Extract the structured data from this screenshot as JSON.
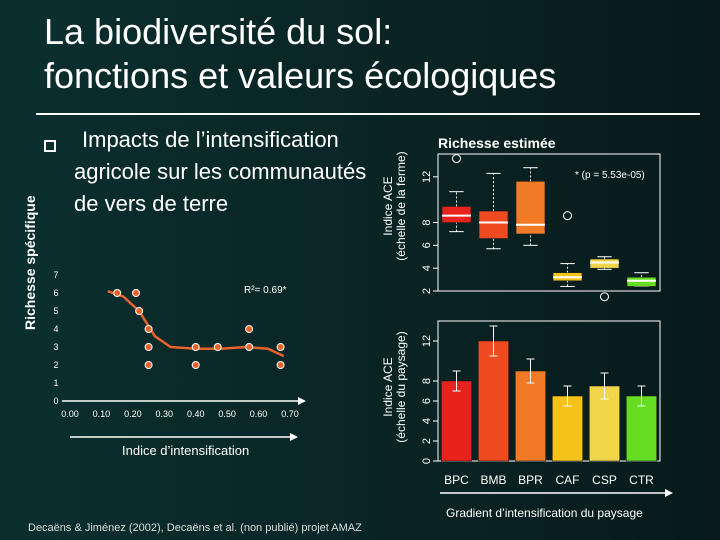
{
  "slide": {
    "title_line1": "La biodiversité du sol:",
    "title_line2": "fonctions et valeurs écologiques",
    "bullet_line1": "Impacts de l’intensification",
    "bullet_line2": "agricole sur les communautés",
    "bullet_line3": "de vers de terre",
    "footer": "Decaëns & Jiménez (2002), Decaëns et al. (non publié) projet AMAZ",
    "colors": {
      "background": "#0b2f2f",
      "accent_line": "#e8632a",
      "point": "#e8632a"
    }
  },
  "chart_data": [
    {
      "type": "scatter",
      "title": "",
      "xlabel": "Indice d’intensification",
      "ylabel": "Richesse spécifique",
      "annotation": "R²= 0.69*",
      "xlim": [
        0,
        0.7
      ],
      "ylim": [
        0,
        7
      ],
      "x_ticks": [
        "0.00",
        "0.10",
        "0.20",
        "0.30",
        "0.40",
        "0.50",
        "0.60",
        "0.70"
      ],
      "y_ticks": [
        "0",
        "1",
        "2",
        "3",
        "4",
        "5",
        "6",
        "7"
      ],
      "points": [
        {
          "x": 0.15,
          "y": 6.0
        },
        {
          "x": 0.21,
          "y": 6.0
        },
        {
          "x": 0.22,
          "y": 5.0
        },
        {
          "x": 0.25,
          "y": 4.0
        },
        {
          "x": 0.25,
          "y": 3.0
        },
        {
          "x": 0.25,
          "y": 2.0
        },
        {
          "x": 0.4,
          "y": 3.0
        },
        {
          "x": 0.4,
          "y": 2.0
        },
        {
          "x": 0.47,
          "y": 3.0
        },
        {
          "x": 0.57,
          "y": 4.0
        },
        {
          "x": 0.57,
          "y": 3.0
        },
        {
          "x": 0.67,
          "y": 3.0
        },
        {
          "x": 0.67,
          "y": 2.0
        }
      ],
      "trend": [
        {
          "x": 0.12,
          "y": 6.1
        },
        {
          "x": 0.17,
          "y": 5.8
        },
        {
          "x": 0.22,
          "y": 5.0
        },
        {
          "x": 0.27,
          "y": 3.6
        },
        {
          "x": 0.32,
          "y": 3.0
        },
        {
          "x": 0.4,
          "y": 2.9
        },
        {
          "x": 0.48,
          "y": 2.9
        },
        {
          "x": 0.56,
          "y": 3.0
        },
        {
          "x": 0.63,
          "y": 2.9
        },
        {
          "x": 0.68,
          "y": 2.5
        }
      ]
    },
    {
      "type": "box",
      "title": "Richesse estimée",
      "ylabel_line1": "Indice ACE",
      "ylabel_line2": "(échelle de la ferme)",
      "annotation": "* (p = 5.53e-05)",
      "ylim": [
        2,
        14
      ],
      "y_ticks": [
        "2",
        "4",
        "6",
        "8",
        "12"
      ],
      "y_tick_values": [
        2,
        4,
        6,
        8,
        12
      ],
      "categories": [
        "BPC",
        "BMB",
        "BPR",
        "CAF",
        "CSP",
        "CTR"
      ],
      "colors": [
        "#e8231d",
        "#f04a20",
        "#f07a26",
        "#f5c21a",
        "#f1d64a",
        "#66dd22"
      ],
      "boxes": [
        {
          "whisker_low": 7.2,
          "q1": 8.0,
          "median": 8.6,
          "q3": 9.4,
          "whisker_high": 10.7,
          "outliers": [
            13.6
          ]
        },
        {
          "whisker_low": 5.7,
          "q1": 6.6,
          "median": 8.0,
          "q3": 9.0,
          "whisker_high": 12.3,
          "outliers": []
        },
        {
          "whisker_low": 6.0,
          "q1": 7.0,
          "median": 7.8,
          "q3": 11.6,
          "whisker_high": 12.8,
          "outliers": []
        },
        {
          "whisker_low": 2.4,
          "q1": 2.9,
          "median": 3.2,
          "q3": 3.6,
          "whisker_high": 4.4,
          "outliers": [
            8.6
          ]
        },
        {
          "whisker_low": 3.9,
          "q1": 4.0,
          "median": 4.5,
          "q3": 4.8,
          "whisker_high": 5.0,
          "outliers": [
            1.5
          ]
        },
        {
          "whisker_low": 2.4,
          "q1": 2.4,
          "median": 2.9,
          "q3": 3.2,
          "whisker_high": 3.6,
          "outliers": []
        }
      ]
    },
    {
      "type": "bar",
      "ylabel_line1": "Indice ACE",
      "ylabel_line2": "(échelle du paysage)",
      "xlabel": "Gradient d’intensification du paysage",
      "ylim": [
        0,
        14
      ],
      "y_ticks": [
        "0",
        "2",
        "4",
        "6",
        "8",
        "12"
      ],
      "y_tick_values": [
        0,
        2,
        4,
        6,
        8,
        12
      ],
      "categories": [
        "BPC",
        "BMB",
        "BPR",
        "CAF",
        "CSP",
        "CTR"
      ],
      "colors": [
        "#e8231d",
        "#f04a20",
        "#f07a26",
        "#f5c21a",
        "#f1d64a",
        "#66dd22"
      ],
      "values": [
        8.0,
        12.0,
        9.0,
        6.5,
        7.5,
        6.5
      ],
      "errors": [
        1.0,
        1.5,
        1.2,
        1.0,
        1.3,
        1.0
      ]
    }
  ]
}
